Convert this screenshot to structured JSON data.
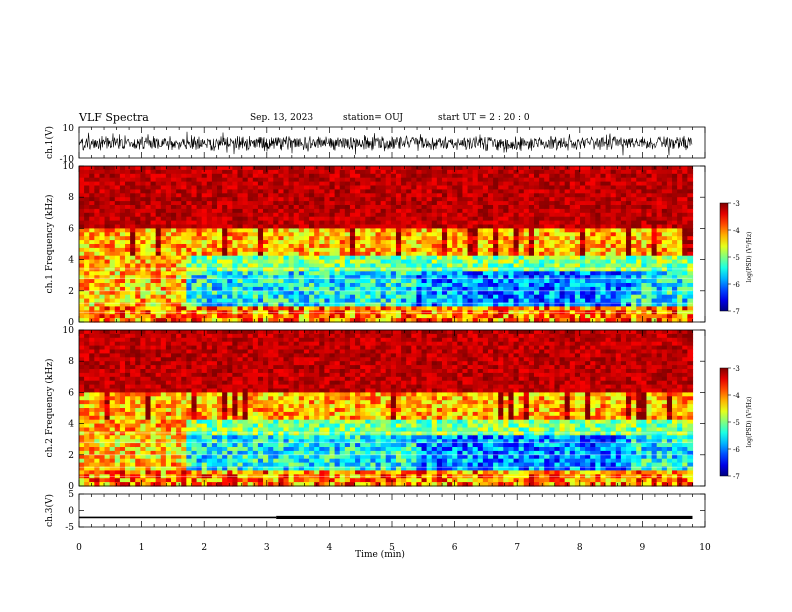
{
  "header": {
    "title": "VLF Spectra",
    "date": "Sep. 13, 2023",
    "station": "station= OUJ",
    "start": "start  UT =   2 : 20 : 0"
  },
  "chart_data": [
    {
      "type": "line",
      "name": "ch1-waveform",
      "ylabel": "ch.1(V)",
      "ylim": [
        -10,
        10
      ],
      "ytick_labels": [
        "10",
        "-10"
      ],
      "xlim": [
        0,
        10
      ],
      "x_end": 9.8,
      "center": -0.5,
      "amplitude": 1.2
    },
    {
      "type": "heatmap",
      "name": "ch1-spectrogram",
      "ylabel": "ch.1 Frequency  (kHz)",
      "ylim": [
        0,
        10
      ],
      "xlim": [
        0,
        10
      ],
      "x_end": 9.8,
      "ytick_labels": [
        "0",
        "2",
        "4",
        "6",
        "8",
        "10"
      ],
      "colorbar": {
        "label": "log(PSD) (V²/Hz)",
        "range": [
          -7,
          -3
        ],
        "tick_labels": [
          "-3",
          "-4",
          "-5",
          "-6",
          "-7"
        ]
      },
      "time_segments_min": [
        0,
        1.7,
        5.4,
        8.8,
        9.8
      ],
      "quiet_segments": [
        1,
        2,
        3
      ]
    },
    {
      "type": "heatmap",
      "name": "ch2-spectrogram",
      "ylabel": "ch.2 Frequency  (kHz)",
      "ylim": [
        0,
        10
      ],
      "xlim": [
        0,
        10
      ],
      "x_end": 9.8,
      "ytick_labels": [
        "0",
        "2",
        "4",
        "6",
        "8",
        "10"
      ],
      "colorbar": {
        "label": "log(PSD) (V²/Hz)",
        "range": [
          -7,
          -3
        ],
        "tick_labels": [
          "-3",
          "-4",
          "-5",
          "-6",
          "-7"
        ]
      },
      "time_segments_min": [
        0,
        1.7,
        5.4,
        8.8,
        9.8
      ],
      "quiet_segments": [
        1,
        2,
        3
      ]
    },
    {
      "type": "line",
      "name": "ch3-signal",
      "ylabel": "ch.3(V)",
      "ylim": [
        -5,
        5
      ],
      "ytick_labels": [
        "5",
        "0",
        "-5"
      ],
      "xlim": [
        0,
        10
      ],
      "xlabel": "Time  (min)",
      "xtick_labels": [
        "0",
        "1",
        "2",
        "3",
        "4",
        "5",
        "6",
        "7",
        "8",
        "9",
        "10"
      ],
      "x": [
        0,
        3.15,
        3.15,
        9.8
      ],
      "y": [
        -2.1,
        -2.1,
        -2.1,
        -2.1
      ],
      "thick_from": 3.15
    }
  ]
}
